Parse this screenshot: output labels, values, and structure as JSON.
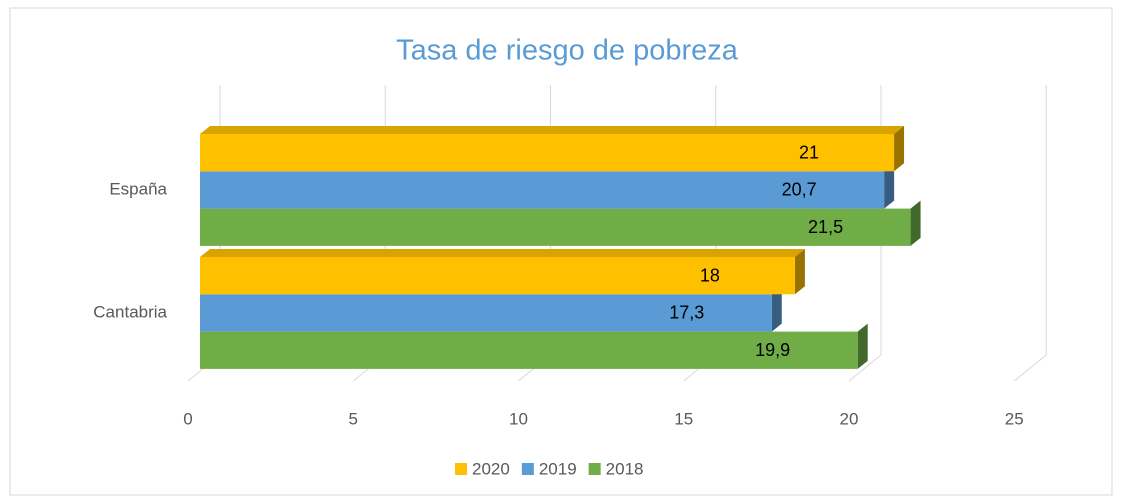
{
  "chart_data": {
    "type": "bar3d_horizontal",
    "title": "Tasa de riesgo de pobreza",
    "categories": [
      "España",
      "Cantabria"
    ],
    "series": [
      {
        "name": "2020",
        "color": "#ffc000",
        "values": [
          21,
          18
        ],
        "value_labels": [
          "21",
          "18"
        ]
      },
      {
        "name": "2019",
        "color": "#5b9bd5",
        "values": [
          20.7,
          17.3
        ],
        "value_labels": [
          "20,7",
          "17,3"
        ]
      },
      {
        "name": "2018",
        "color": "#70ad47",
        "values": [
          21.5,
          19.9
        ],
        "value_labels": [
          "21,5",
          "19,9"
        ]
      }
    ],
    "xlim": [
      0,
      25
    ],
    "xticks": [
      0,
      5,
      10,
      15,
      20,
      25
    ],
    "grid": true,
    "legend": "bottom"
  }
}
